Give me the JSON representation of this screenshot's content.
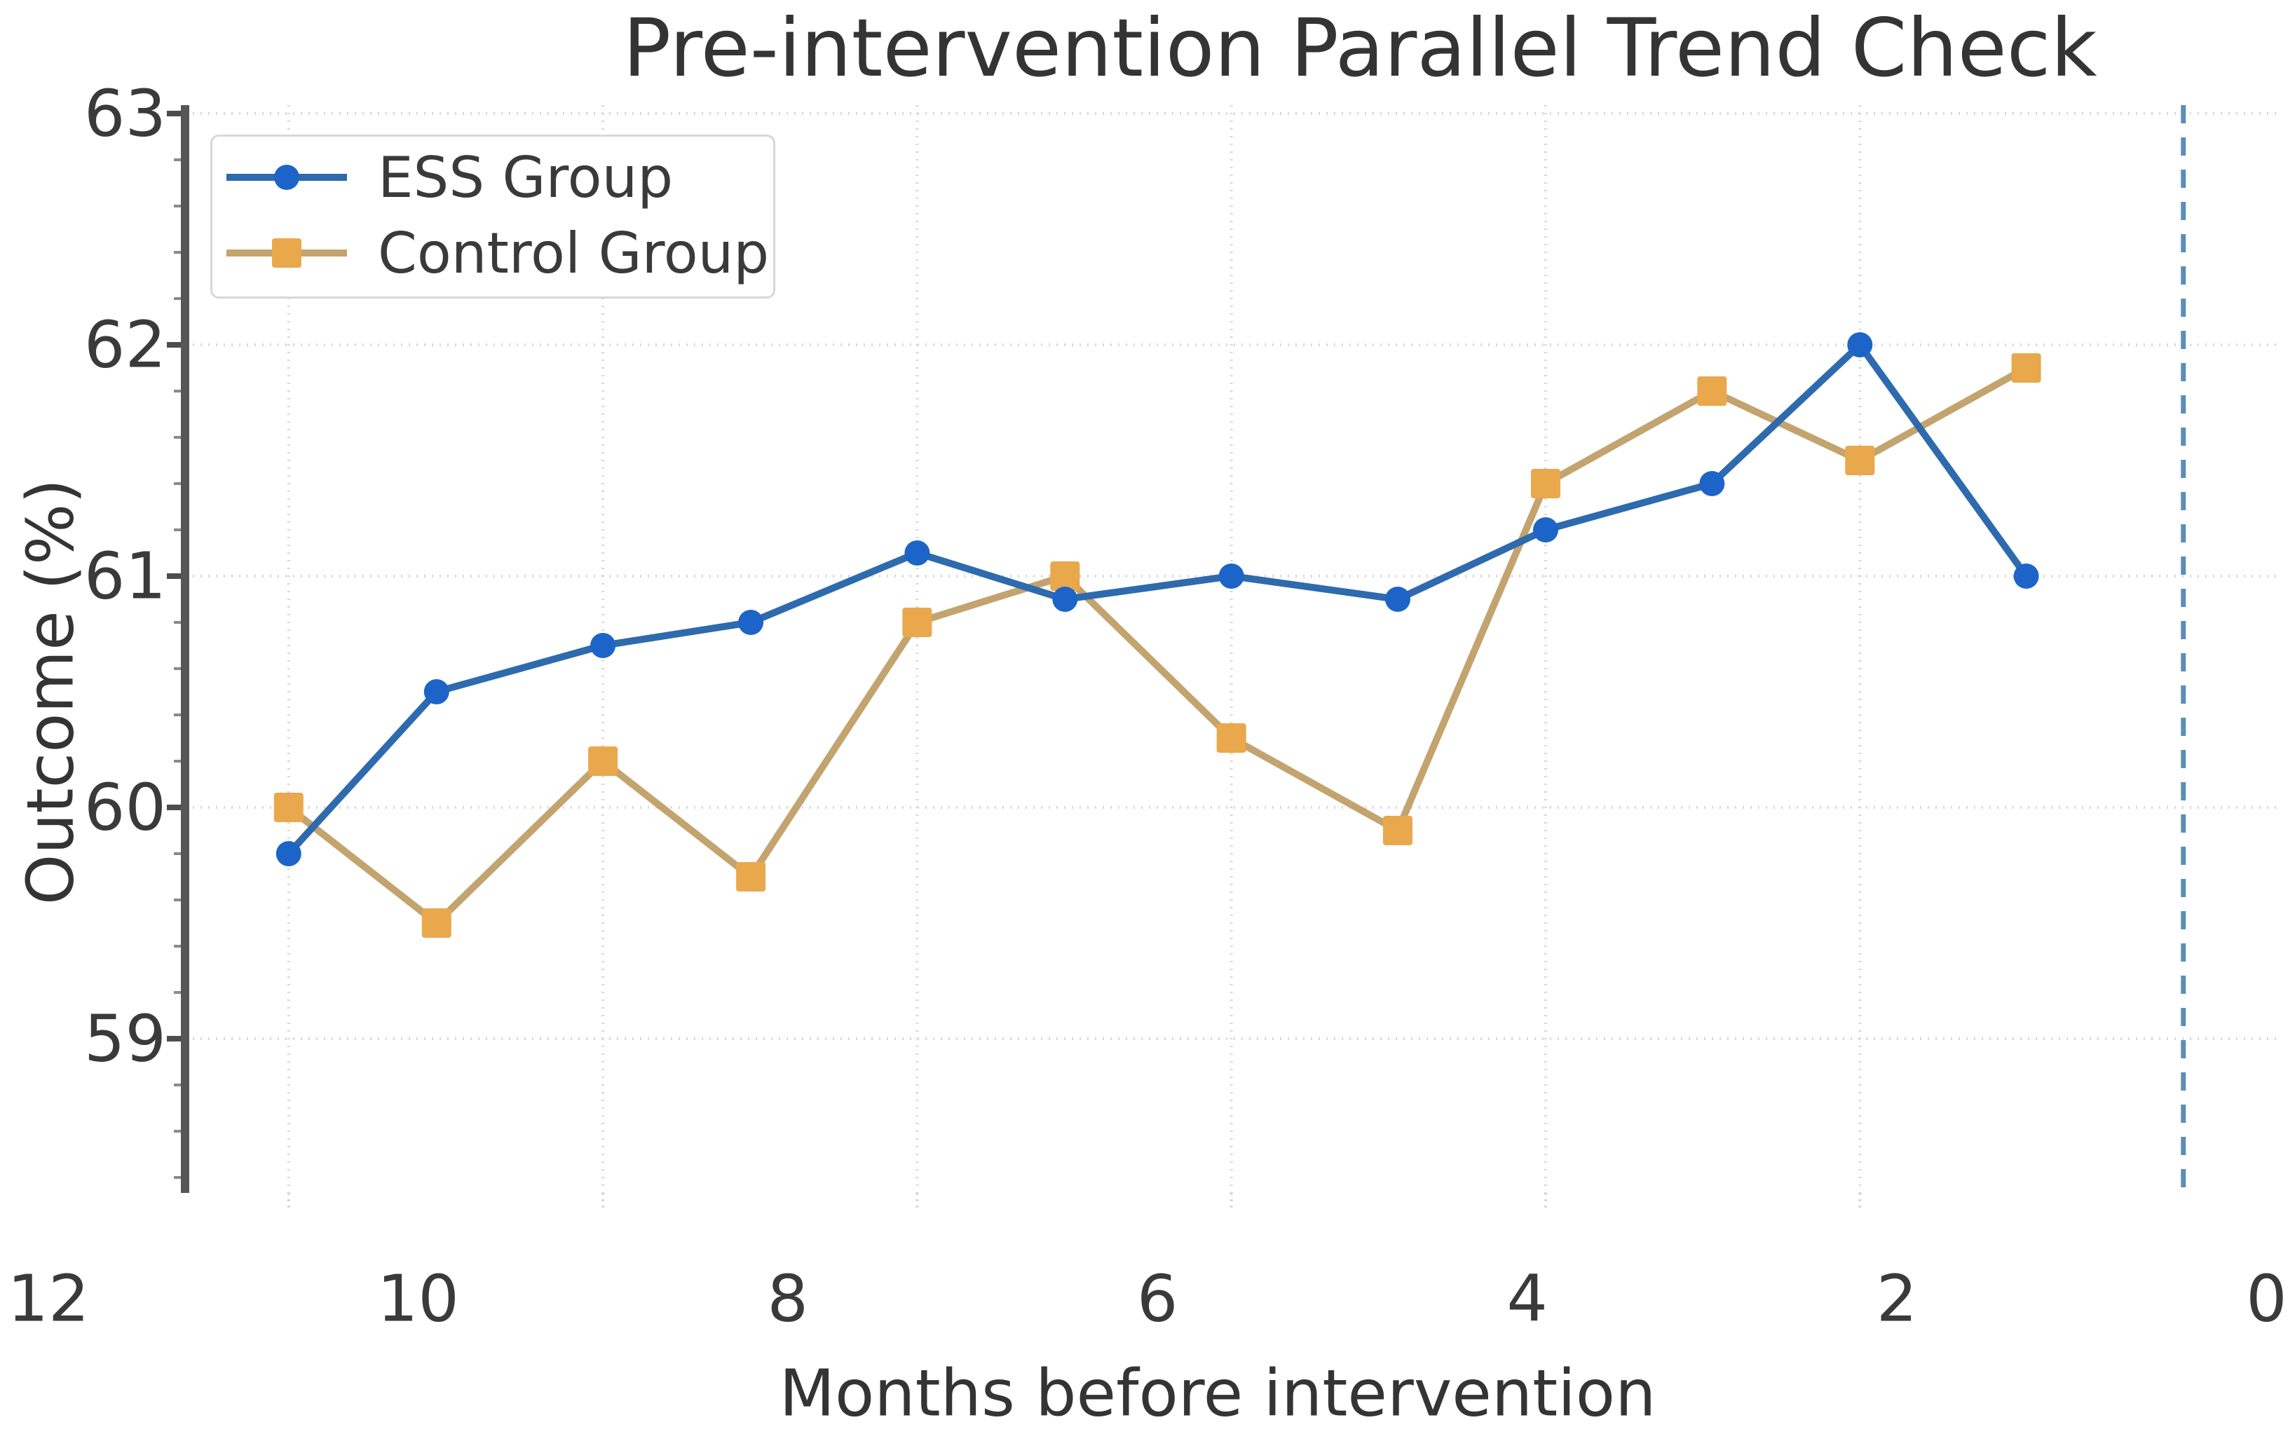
{
  "page": {
    "background": "#ffffff"
  },
  "chart_data": {
    "type": "line",
    "title": "Pre-intervention Parallel Trend Check",
    "xlabel": "Months before intervention",
    "ylabel": "Outcome (%)",
    "x_ticks": [
      12,
      10,
      8,
      6,
      4,
      2,
      0
    ],
    "y_ticks": [
      59,
      60,
      61,
      62,
      63
    ],
    "x_axis_reversed": true,
    "xlim": [
      12,
      0
    ],
    "ylim": [
      58.3,
      63.0
    ],
    "grid": "dotted",
    "legend_position": "upper left",
    "intervention_line_month": 0.45,
    "months": [
      10.7,
      9.9,
      9.0,
      8.2,
      7.3,
      6.5,
      5.6,
      4.7,
      3.9,
      3.0,
      2.2,
      1.3
    ],
    "series": [
      {
        "name": "ESS Group",
        "marker": "circle",
        "values": [
          59.8,
          60.5,
          60.7,
          60.8,
          61.1,
          60.9,
          61.0,
          60.9,
          61.2,
          61.4,
          62.0,
          61.0
        ]
      },
      {
        "name": "Control Group",
        "marker": "square",
        "values": [
          60.0,
          59.5,
          60.2,
          59.7,
          60.8,
          61.0,
          60.3,
          59.9,
          61.4,
          61.8,
          61.5,
          61.9
        ]
      }
    ]
  },
  "colors": {
    "background": "#ffffff",
    "ess_line": "#2e6aae",
    "ess_marker": "#1c64c8",
    "control_line": "#c3a36e",
    "control_marker": "#e9a84c",
    "grid": "#d8d8d8",
    "spine": "#565656",
    "major_tick": "#4d4d4d",
    "minor_tick": "#8a8a8a",
    "text": "#3a3a3a",
    "intervention_line": "#5b8db8",
    "legend_border": "#d8d8d8"
  }
}
